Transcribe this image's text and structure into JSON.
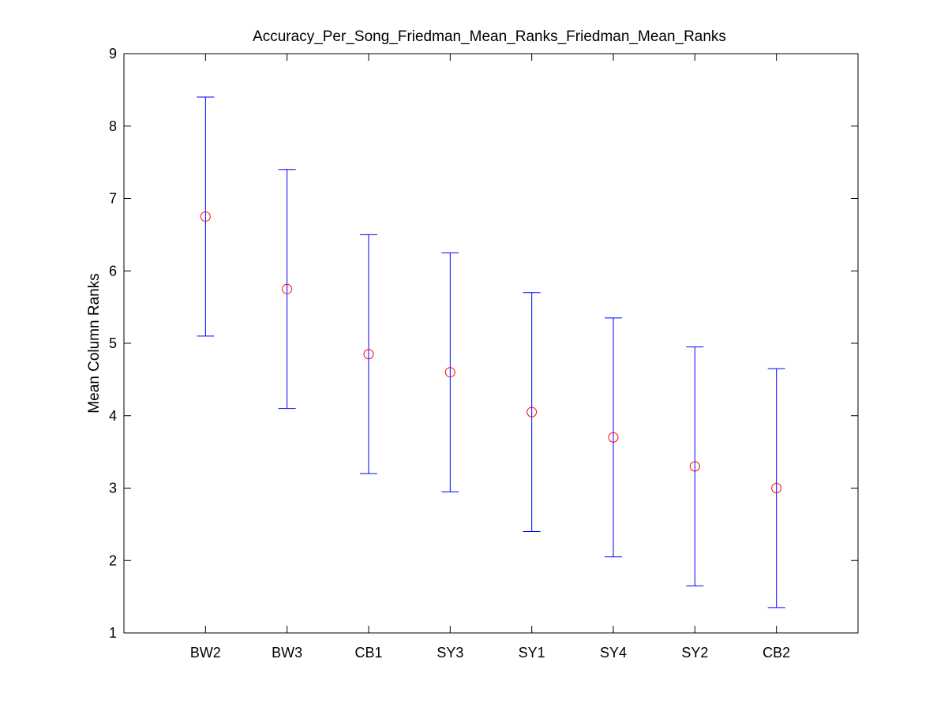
{
  "chart_data": {
    "type": "scatter",
    "title": "Accuracy_Per_Song_Friedman_Mean_Ranks_Friedman_Mean_Ranks",
    "xlabel": "",
    "ylabel": "Mean Column Ranks",
    "categories": [
      "BW2",
      "BW3",
      "CB1",
      "SY3",
      "SY1",
      "SY4",
      "SY2",
      "CB2"
    ],
    "series": [
      {
        "means": [
          6.75,
          5.75,
          4.85,
          4.6,
          4.05,
          3.7,
          3.3,
          3.0
        ],
        "lower": [
          5.1,
          4.1,
          3.2,
          2.95,
          2.4,
          2.05,
          1.65,
          1.35
        ],
        "upper": [
          8.4,
          7.4,
          6.5,
          6.25,
          5.7,
          5.35,
          4.95,
          4.65
        ]
      }
    ],
    "ylim": [
      1,
      9
    ],
    "yticks": [
      "1",
      "2",
      "3",
      "4",
      "5",
      "6",
      "7",
      "8",
      "9"
    ],
    "grid": false,
    "legend": "none",
    "colors": {
      "error_bar": "#0000ff",
      "marker": "#ff0000",
      "axes": "#000000",
      "background": "#ffffff"
    },
    "marker_shape": "circle-open"
  }
}
